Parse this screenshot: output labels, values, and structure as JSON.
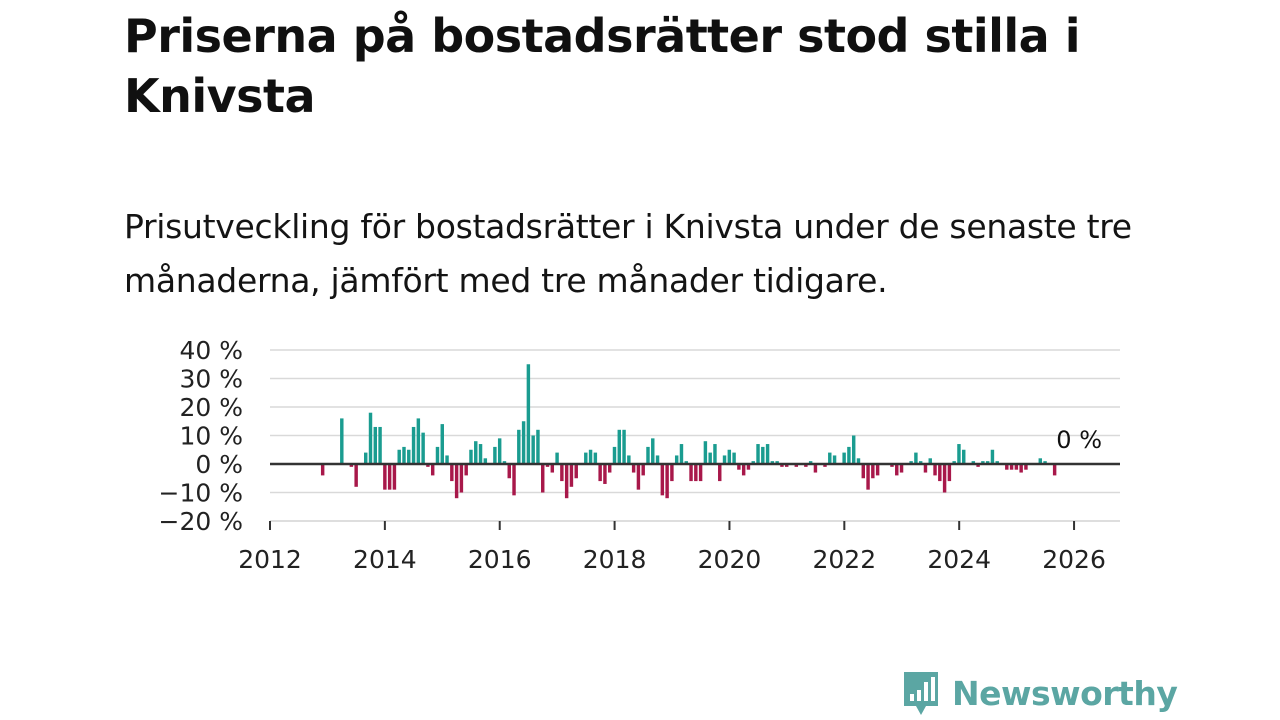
{
  "title": "Priserna på bostadsrätter stod stilla i Knivsta",
  "subtitle": "Prisutveckling för bostadsrätter i Knivsta under de senaste tre månaderna, jämfört med tre månader tidigare.",
  "brand": {
    "name": "Newsworthy"
  },
  "colors": {
    "positive": "#1a9c90",
    "negative": "#a8184a",
    "grid": "#d9d9d9",
    "axis": "#333333",
    "brand": "#5ba6a3"
  },
  "chart_data": {
    "type": "bar",
    "title": "",
    "xlabel": "",
    "ylabel": "",
    "ylim": [
      -20,
      40
    ],
    "xlim": [
      2012,
      2026.8
    ],
    "y_ticks": [
      40,
      30,
      20,
      10,
      0,
      -10,
      -20
    ],
    "y_tick_labels": [
      "40 %",
      "30 %",
      "20 %",
      "10 %",
      "0 %",
      "−10 %",
      "−20 %"
    ],
    "x_ticks": [
      2012,
      2014,
      2016,
      2018,
      2020,
      2022,
      2024,
      2026
    ],
    "x_tick_labels": [
      "2012",
      "2014",
      "2016",
      "2018",
      "2020",
      "2022",
      "2024",
      "2026"
    ],
    "last_value_label": "0 %",
    "x_start": 2012.917,
    "x_step": 0.0833,
    "values": [
      -4,
      0,
      0,
      0,
      16,
      0,
      -1,
      -8,
      0,
      4,
      18,
      13,
      13,
      -9,
      -9,
      -9,
      5,
      6,
      5,
      13,
      16,
      11,
      -1,
      -4,
      6,
      14,
      3,
      -6,
      -12,
      -10,
      -4,
      5,
      8,
      7,
      2,
      0,
      6,
      9,
      1,
      -5,
      -11,
      12,
      15,
      35,
      10,
      12,
      -10,
      -1,
      -3,
      4,
      -6,
      -12,
      -8,
      -5,
      0,
      4,
      5,
      4,
      -6,
      -7,
      -3,
      6,
      12,
      12,
      3,
      -3,
      -9,
      -4,
      6,
      9,
      3,
      -11,
      -12,
      -6,
      3,
      7,
      1,
      -6,
      -6,
      -6,
      8,
      4,
      7,
      -6,
      3,
      5,
      4,
      -2,
      -4,
      -2,
      1,
      7,
      6,
      7,
      1,
      1,
      -1,
      -1,
      0,
      -1,
      0,
      -1,
      1,
      -3,
      0,
      -1,
      4,
      3,
      0,
      4,
      6,
      10,
      2,
      -5,
      -9,
      -5,
      -4,
      0,
      0,
      -1,
      -4,
      -3,
      0,
      1,
      4,
      1,
      -3,
      2,
      -4,
      -6,
      -10,
      -6,
      1,
      7,
      5,
      0,
      1,
      -1,
      1,
      1,
      5,
      1,
      0,
      -2,
      -2,
      -2,
      -3,
      -2,
      0,
      0,
      2,
      1,
      0,
      -4,
      0
    ]
  }
}
